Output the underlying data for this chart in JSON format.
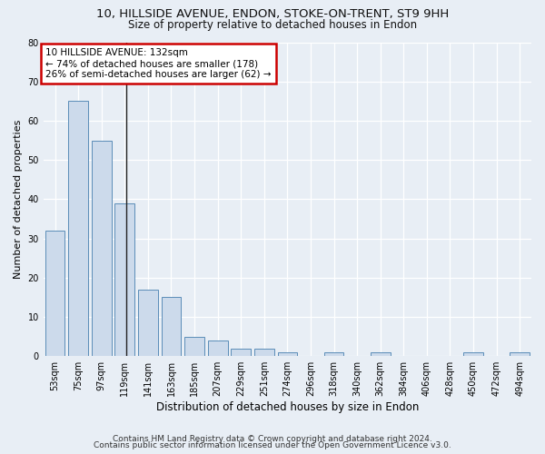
{
  "title_line1": "10, HILLSIDE AVENUE, ENDON, STOKE-ON-TRENT, ST9 9HH",
  "title_line2": "Size of property relative to detached houses in Endon",
  "xlabel": "Distribution of detached houses by size in Endon",
  "ylabel": "Number of detached properties",
  "bar_color": "#ccdaeb",
  "bar_edge_color": "#5b8db8",
  "annotation_box_color": "#cc0000",
  "annotation_text_line1": "10 HILLSIDE AVENUE: 132sqm",
  "annotation_text_line2": "← 74% of detached houses are smaller (178)",
  "annotation_text_line3": "26% of semi-detached houses are larger (62) →",
  "property_line_color": "#222222",
  "property_sqm": 132,
  "bin_edges": [
    53,
    75,
    97,
    119,
    141,
    163,
    185,
    207,
    229,
    251,
    274,
    296,
    318,
    340,
    362,
    384,
    406,
    428,
    450,
    472,
    494
  ],
  "bin_labels": [
    "53sqm",
    "75sqm",
    "97sqm",
    "119sqm",
    "141sqm",
    "163sqm",
    "185sqm",
    "207sqm",
    "229sqm",
    "251sqm",
    "274sqm",
    "296sqm",
    "318sqm",
    "340sqm",
    "362sqm",
    "384sqm",
    "406sqm",
    "428sqm",
    "450sqm",
    "472sqm",
    "494sqm"
  ],
  "bar_heights": [
    32,
    65,
    55,
    39,
    17,
    15,
    5,
    4,
    2,
    2,
    1,
    0,
    1,
    0,
    1,
    0,
    0,
    0,
    1,
    0,
    1
  ],
  "ylim": [
    0,
    80
  ],
  "yticks": [
    0,
    10,
    20,
    30,
    40,
    50,
    60,
    70,
    80
  ],
  "background_color": "#e8eef5",
  "plot_bg_color": "#e8eef5",
  "grid_color": "#ffffff",
  "footnote_line1": "Contains HM Land Registry data © Crown copyright and database right 2024.",
  "footnote_line2": "Contains public sector information licensed under the Open Government Licence v3.0.",
  "title_fontsize": 9.5,
  "subtitle_fontsize": 8.5,
  "tick_fontsize": 7,
  "ylabel_fontsize": 8,
  "xlabel_fontsize": 8.5,
  "footnote_fontsize": 6.5,
  "annotation_fontsize": 7.5
}
